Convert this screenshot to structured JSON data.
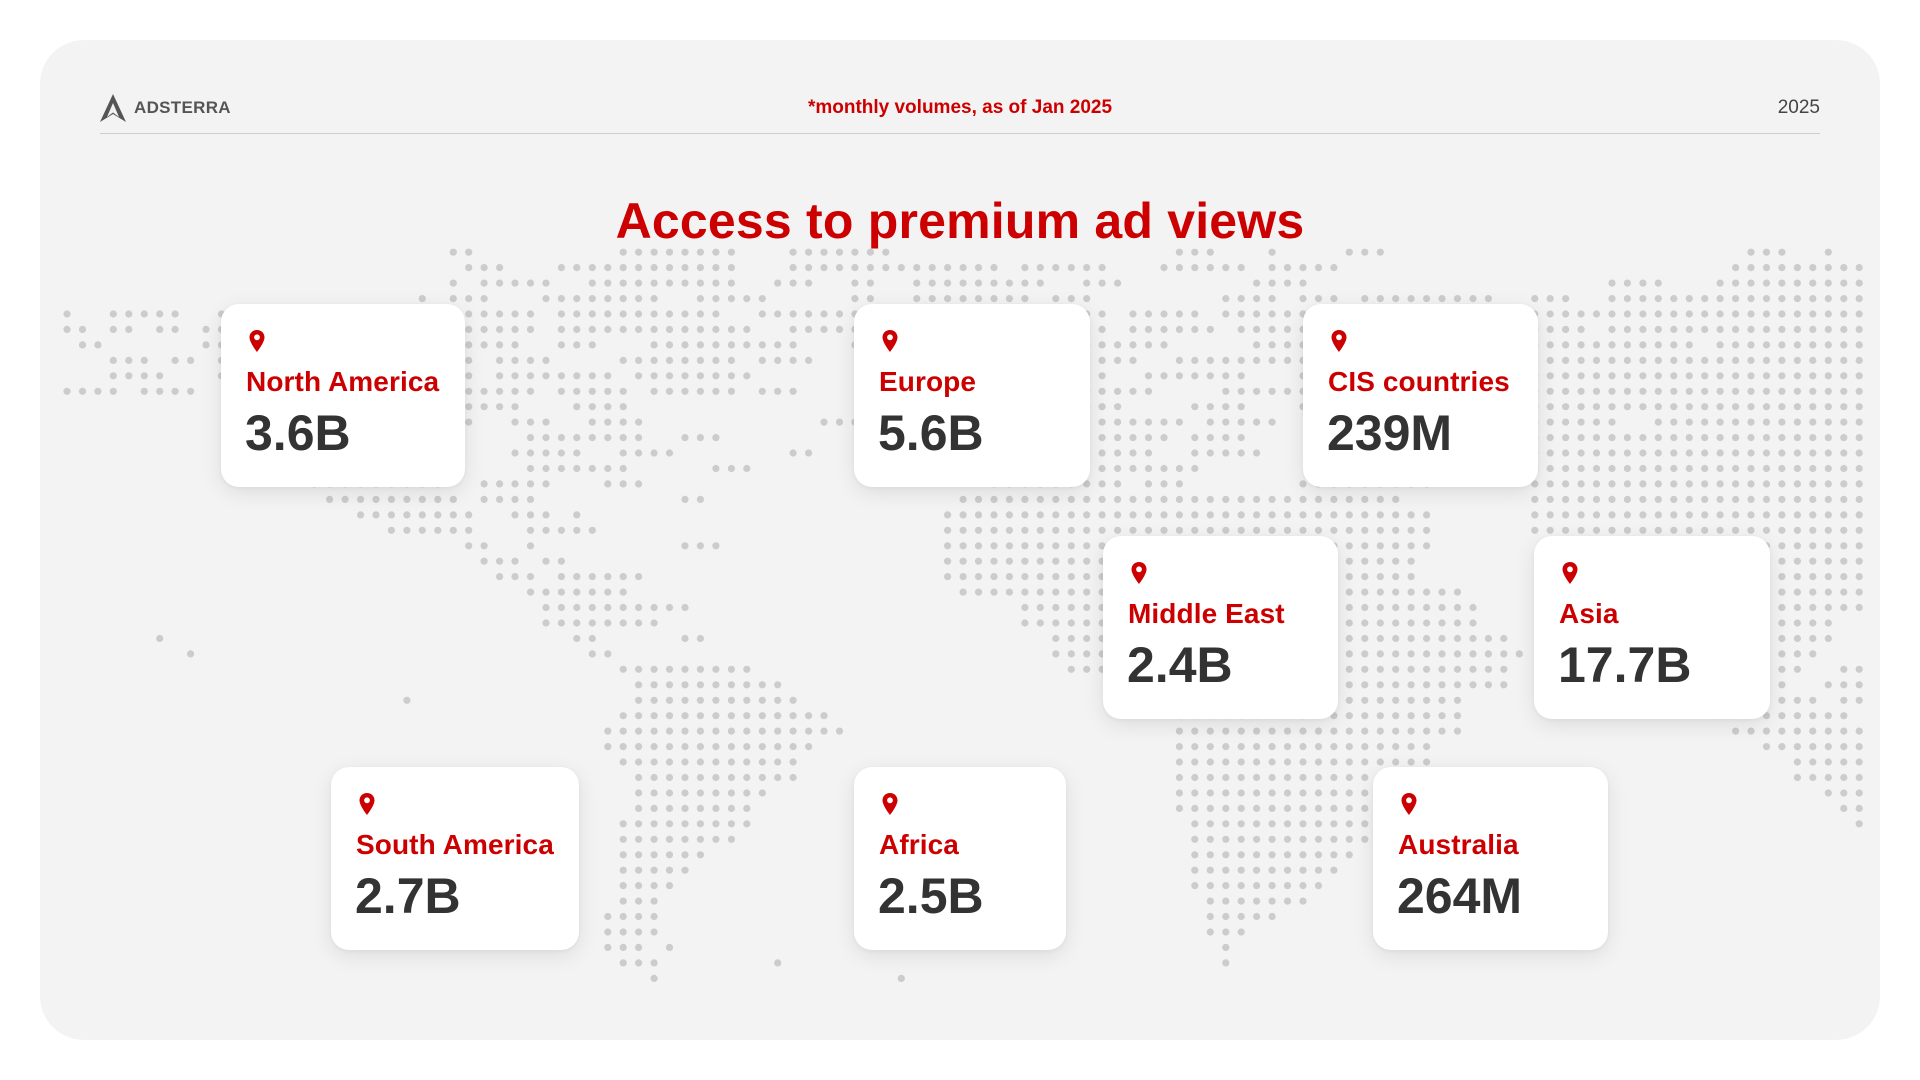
{
  "brand": {
    "name": "ADSTERRA",
    "icon": "adsterra-logo-icon"
  },
  "header": {
    "note": "*monthly volumes, as of Jan 2025",
    "year": "2025"
  },
  "title": "Access to premium ad views",
  "colors": {
    "accent": "#CC0000",
    "value_text": "#333333",
    "panel_bg": "#F3F3F3",
    "card_bg": "#FFFFFF",
    "map_dot": "#CCCCCC",
    "logo": "#555555"
  },
  "regions": [
    {
      "name": "North America",
      "value": "3.6B",
      "icon": "map-pin-icon"
    },
    {
      "name": "Europe",
      "value": "5.6B",
      "icon": "map-pin-icon"
    },
    {
      "name": "CIS countries",
      "value": "239M",
      "icon": "map-pin-icon"
    },
    {
      "name": "Middle East",
      "value": "2.4B",
      "icon": "map-pin-icon"
    },
    {
      "name": "Asia",
      "value": "17.7B",
      "icon": "map-pin-icon"
    },
    {
      "name": "South America",
      "value": "2.7B",
      "icon": "map-pin-icon"
    },
    {
      "name": "Africa",
      "value": "2.5B",
      "icon": "map-pin-icon"
    },
    {
      "name": "Australia",
      "value": "264M",
      "icon": "map-pin-icon"
    }
  ]
}
